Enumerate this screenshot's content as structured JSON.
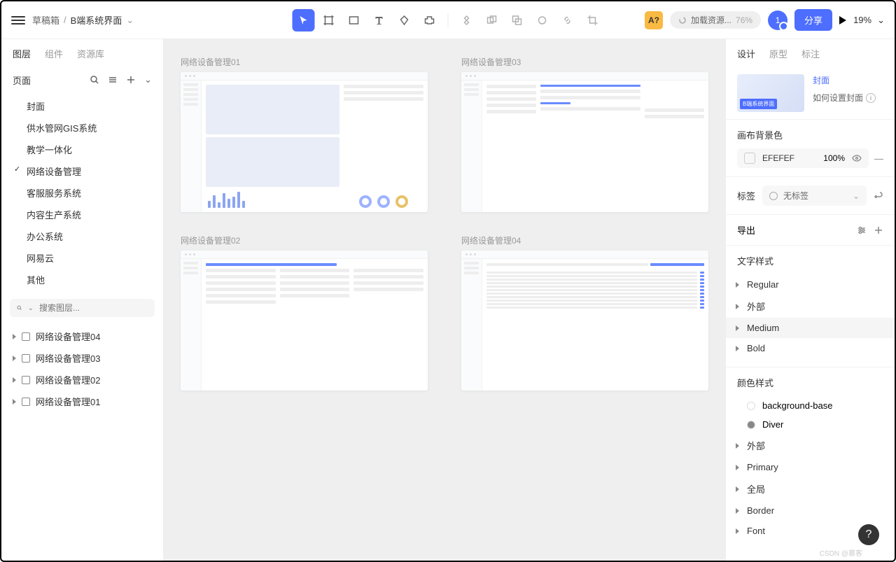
{
  "breadcrumb": {
    "root": "草稿箱",
    "current": "B端系统界面"
  },
  "loading": {
    "text": "加载资源...",
    "pct": "76%"
  },
  "avatar": "1",
  "share": "分享",
  "zoom": "19%",
  "leftTabs": {
    "t1": "图层",
    "t2": "组件",
    "t3": "资源库"
  },
  "pagesHdr": "页面",
  "pages": [
    {
      "label": "封面"
    },
    {
      "label": "供水管网GIS系统"
    },
    {
      "label": "教学一体化"
    },
    {
      "label": "网络设备管理",
      "active": true
    },
    {
      "label": "客服服务系统"
    },
    {
      "label": "内容生产系统"
    },
    {
      "label": "办公系统"
    },
    {
      "label": "网易云"
    },
    {
      "label": "其他"
    }
  ],
  "searchPlaceholder": "搜索图层...",
  "layers": [
    {
      "label": "网络设备管理04"
    },
    {
      "label": "网络设备管理03"
    },
    {
      "label": "网络设备管理02"
    },
    {
      "label": "网络设备管理01"
    }
  ],
  "artboards": [
    {
      "label": "网络设备管理01"
    },
    {
      "label": "网络设备管理03"
    },
    {
      "label": "网络设备管理02"
    },
    {
      "label": "网络设备管理04"
    }
  ],
  "rightTabs": {
    "t1": "设计",
    "t2": "原型",
    "t3": "标注"
  },
  "cover": {
    "link": "封面",
    "help": "如何设置封面",
    "thumbLabel": "B端系统界面"
  },
  "bgSection": {
    "title": "画布背景色",
    "hex": "EFEFEF",
    "opacity": "100%"
  },
  "tagSection": {
    "title": "标签",
    "value": "无标签"
  },
  "exportSection": {
    "title": "导出"
  },
  "textSection": {
    "title": "文字样式",
    "items": [
      "Regular",
      "外部",
      "Medium",
      "Bold"
    ]
  },
  "colorSection": {
    "title": "颜色样式",
    "swatches": [
      "background-base",
      "Diver"
    ],
    "groups": [
      "外部",
      "Primary",
      "全局",
      "Border",
      "Font"
    ]
  },
  "watermark": "CSDN @慕客"
}
